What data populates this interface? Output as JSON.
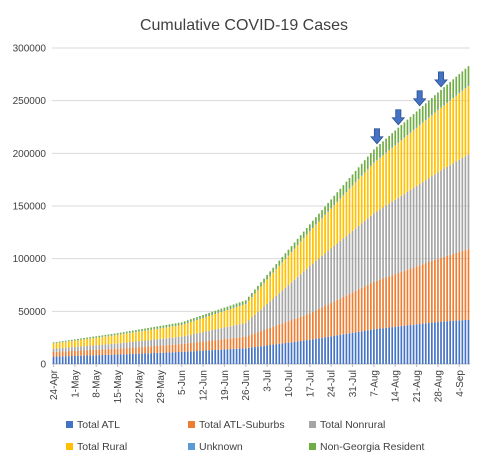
{
  "chart_data": {
    "type": "bar",
    "stacked": true,
    "title": "Cumulative COVID-19 Cases",
    "xlabel": "",
    "ylabel": "",
    "ylim": [
      0,
      300000
    ],
    "yticks": [
      "0",
      "50000",
      "100000",
      "150000",
      "200000",
      "250000",
      "300000"
    ],
    "grid": "horizontal",
    "legend_position": "bottom",
    "start_date": "2020-04-24",
    "end_date": "2020-09-07",
    "xtick_labels": [
      "24-Apr",
      "1-May",
      "8-May",
      "15-May",
      "22-May",
      "29-May",
      "5-Jun",
      "12-Jun",
      "19-Jun",
      "26-Jun",
      "3-Jul",
      "10-Jul",
      "17-Jul",
      "24-Jul",
      "31-Jul",
      "7-Aug",
      "14-Aug",
      "21-Aug",
      "28-Aug",
      "4-Sep"
    ],
    "series": [
      {
        "name": "Total ATL",
        "color": "#4472C4",
        "knots": [
          [
            "2020-04-24",
            7000
          ],
          [
            "2020-05-15",
            9000
          ],
          [
            "2020-06-05",
            11500
          ],
          [
            "2020-06-26",
            15000
          ],
          [
            "2020-07-17",
            23000
          ],
          [
            "2020-08-07",
            33000
          ],
          [
            "2020-08-28",
            40000
          ],
          [
            "2020-09-07",
            42000
          ]
        ]
      },
      {
        "name": "Total ATL-Suburbs",
        "color": "#ED7D31",
        "knots": [
          [
            "2020-04-24",
            4500
          ],
          [
            "2020-05-15",
            5500
          ],
          [
            "2020-06-05",
            7500
          ],
          [
            "2020-06-26",
            11000
          ],
          [
            "2020-07-17",
            25000
          ],
          [
            "2020-08-07",
            45000
          ],
          [
            "2020-08-28",
            60000
          ],
          [
            "2020-09-07",
            67000
          ]
        ]
      },
      {
        "name": "Total Nonrural",
        "color": "#A5A5A5",
        "knots": [
          [
            "2020-04-24",
            3000
          ],
          [
            "2020-05-15",
            5000
          ],
          [
            "2020-06-05",
            7000
          ],
          [
            "2020-06-26",
            13000
          ],
          [
            "2020-07-17",
            45000
          ],
          [
            "2020-08-07",
            65000
          ],
          [
            "2020-08-28",
            82000
          ],
          [
            "2020-09-07",
            90000
          ]
        ]
      },
      {
        "name": "Total Rural",
        "color": "#FFC000",
        "knots": [
          [
            "2020-04-24",
            5000
          ],
          [
            "2020-05-15",
            8000
          ],
          [
            "2020-06-05",
            11000
          ],
          [
            "2020-06-26",
            18000
          ],
          [
            "2020-07-17",
            33000
          ],
          [
            "2020-08-07",
            48000
          ],
          [
            "2020-08-28",
            59000
          ],
          [
            "2020-09-07",
            65000
          ]
        ]
      },
      {
        "name": "Unknown",
        "color": "#5B9BD5",
        "knots": [
          [
            "2020-04-24",
            200
          ],
          [
            "2020-09-07",
            800
          ]
        ]
      },
      {
        "name": "Non-Georgia Resident",
        "color": "#70AD47",
        "knots": [
          [
            "2020-04-24",
            800
          ],
          [
            "2020-05-15",
            1500
          ],
          [
            "2020-06-05",
            2200
          ],
          [
            "2020-06-26",
            3000
          ],
          [
            "2020-07-17",
            6000
          ],
          [
            "2020-08-07",
            12000
          ],
          [
            "2020-08-28",
            16000
          ],
          [
            "2020-09-07",
            18000
          ]
        ]
      }
    ],
    "annotations": [
      {
        "type": "arrow-down",
        "date": "2020-08-08",
        "color": "#4472C4"
      },
      {
        "type": "arrow-down",
        "date": "2020-08-15",
        "color": "#4472C4"
      },
      {
        "type": "arrow-down",
        "date": "2020-08-22",
        "color": "#4472C4"
      },
      {
        "type": "arrow-down",
        "date": "2020-08-29",
        "color": "#4472C4"
      }
    ]
  }
}
